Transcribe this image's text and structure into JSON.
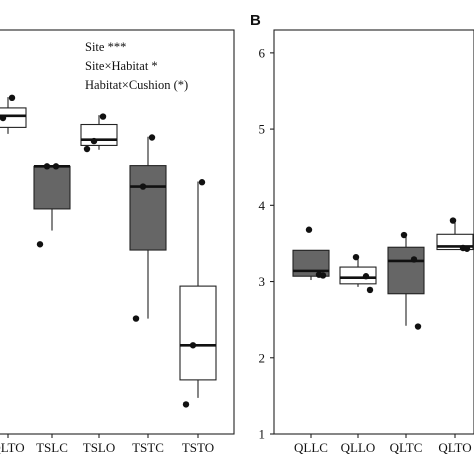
{
  "panels": [
    {
      "letter": "",
      "annotations": [
        "Site ***",
        "Site×Habitat *",
        "Habitat×Cushion (*)"
      ],
      "y_ticks": [],
      "colors": {
        "Cushion": "#666666",
        "Open": "#ffffff"
      }
    },
    {
      "letter": "B",
      "annotations": [],
      "y_ticks": [
        "1",
        "2",
        "3",
        "4",
        "5",
        "6"
      ],
      "colors": {
        "Cushion": "#666666",
        "Open": "#ffffff"
      }
    }
  ],
  "chart_data": [
    {
      "type": "box",
      "title": "",
      "xlabel": "",
      "ylabel": "",
      "ylim": [
        1.0,
        6.6
      ],
      "categories": [
        "QLTO",
        "TSLC",
        "TSLO",
        "TSTC",
        "TSTO"
      ],
      "groups": [
        {
          "name": "QLTO",
          "habitat": "Open",
          "q1": 5.25,
          "median": 5.41,
          "q3": 5.52,
          "whisker_low": 5.16,
          "whisker_high": 5.67,
          "points": [
            5.66,
            5.38,
            5.35
          ]
        },
        {
          "name": "TSLC",
          "habitat": "Cushion",
          "q1": 4.12,
          "median": 4.71,
          "q3": 4.71,
          "whisker_low": 3.82,
          "whisker_high": 4.71,
          "points": [
            4.71,
            4.71,
            3.63
          ]
        },
        {
          "name": "TSLO",
          "habitat": "Open",
          "q1": 5.0,
          "median": 5.08,
          "q3": 5.29,
          "whisker_low": 4.94,
          "whisker_high": 5.42,
          "points": [
            5.4,
            5.06,
            4.95
          ]
        },
        {
          "name": "TSTC",
          "habitat": "Cushion",
          "q1": 3.55,
          "median": 4.43,
          "q3": 4.72,
          "whisker_low": 2.6,
          "whisker_high": 5.12,
          "points": [
            5.11,
            4.43,
            2.6
          ]
        },
        {
          "name": "TSTO",
          "habitat": "Open",
          "q1": 1.75,
          "median": 2.23,
          "q3": 3.05,
          "whisker_low": 1.5,
          "whisker_high": 4.5,
          "points": [
            4.49,
            2.23,
            1.41
          ]
        }
      ]
    },
    {
      "type": "box",
      "title": "",
      "xlabel": "",
      "ylabel": "",
      "ylim": [
        1.0,
        6.3
      ],
      "categories": [
        "QLLC",
        "QLLO",
        "QLTC",
        "QLTO"
      ],
      "groups": [
        {
          "name": "QLLC",
          "habitat": "Cushion",
          "q1": 3.07,
          "median": 3.14,
          "q3": 3.41,
          "whisker_low": 3.02,
          "whisker_high": 3.41,
          "points": [
            3.68,
            3.09,
            3.08
          ]
        },
        {
          "name": "QLLO",
          "habitat": "Open",
          "q1": 2.97,
          "median": 3.05,
          "q3": 3.19,
          "whisker_low": 2.93,
          "whisker_high": 3.31,
          "points": [
            3.32,
            3.07,
            2.89
          ]
        },
        {
          "name": "QLTC",
          "habitat": "Cushion",
          "q1": 2.84,
          "median": 3.27,
          "q3": 3.45,
          "whisker_low": 2.42,
          "whisker_high": 3.62,
          "points": [
            3.61,
            3.29,
            2.41
          ]
        },
        {
          "name": "QLTO",
          "habitat": "Open",
          "q1": 3.42,
          "median": 3.46,
          "q3": 3.62,
          "whisker_low": 3.42,
          "whisker_high": 3.77,
          "points": [
            3.8,
            3.44,
            3.43
          ]
        }
      ]
    }
  ]
}
